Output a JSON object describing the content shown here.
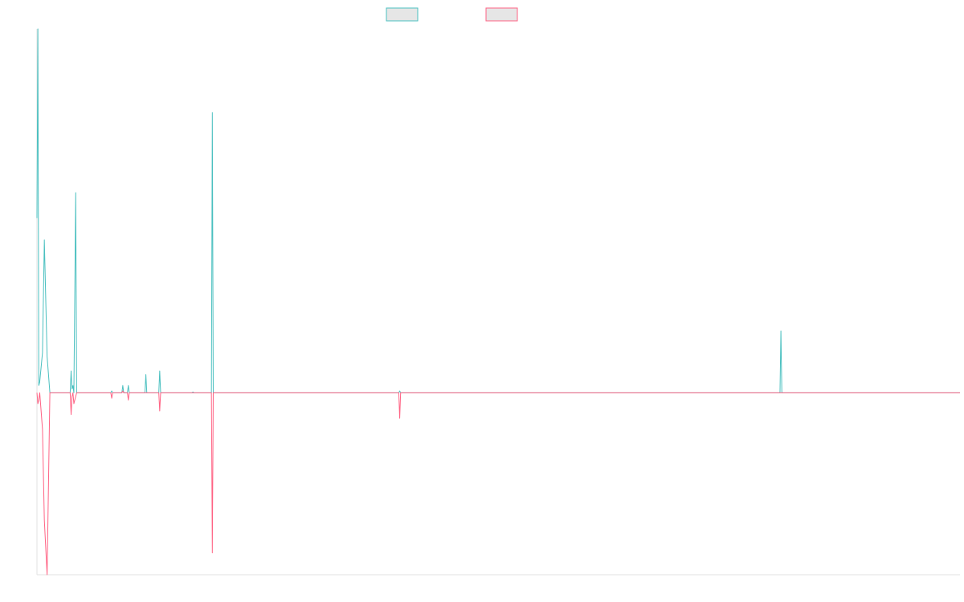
{
  "chart_data": {
    "type": "line",
    "title": "",
    "xlabel": "",
    "ylabel": "",
    "xlim": [
      0,
      1000
    ],
    "ylim": [
      -50,
      100
    ],
    "grid": false,
    "legend": {
      "placement": "top-center",
      "entries": [
        "",
        ""
      ]
    },
    "series": [
      {
        "color": "#4bc0c0",
        "fill": "#e6e6e6",
        "points": [
          [
            0,
            48
          ],
          [
            1,
            100
          ],
          [
            2,
            2
          ],
          [
            3,
            3
          ],
          [
            6,
            11
          ],
          [
            8,
            42
          ],
          [
            11,
            10
          ],
          [
            14,
            0
          ],
          [
            36,
            0
          ],
          [
            37,
            6
          ],
          [
            38,
            1
          ],
          [
            39,
            2
          ],
          [
            40,
            0
          ],
          [
            42,
            55
          ],
          [
            43,
            0
          ],
          [
            80,
            0
          ],
          [
            81,
            0.5
          ],
          [
            82,
            0
          ],
          [
            92,
            0
          ],
          [
            93,
            2
          ],
          [
            94,
            0
          ],
          [
            98,
            0
          ],
          [
            99,
            2
          ],
          [
            100,
            0
          ],
          [
            117,
            0
          ],
          [
            118,
            5
          ],
          [
            119,
            0
          ],
          [
            132,
            0
          ],
          [
            133,
            6
          ],
          [
            134,
            0
          ],
          [
            168,
            0
          ],
          [
            169,
            0.2
          ],
          [
            170,
            0
          ],
          [
            189,
            0
          ],
          [
            190,
            77
          ],
          [
            191,
            0
          ],
          [
            392,
            0
          ],
          [
            393,
            0.5
          ],
          [
            394,
            0
          ],
          [
            805,
            0
          ],
          [
            806,
            17
          ],
          [
            807,
            0
          ],
          [
            1000,
            0
          ]
        ]
      },
      {
        "color": "#ff6384",
        "fill": "#e6e6e6",
        "points": [
          [
            0,
            0
          ],
          [
            1,
            -3
          ],
          [
            2,
            -2
          ],
          [
            3,
            0
          ],
          [
            6,
            -10
          ],
          [
            8,
            -35
          ],
          [
            11,
            -50
          ],
          [
            14,
            0
          ],
          [
            36,
            0
          ],
          [
            37,
            -6
          ],
          [
            38,
            -1
          ],
          [
            39,
            0
          ],
          [
            40,
            -3
          ],
          [
            42,
            -1
          ],
          [
            43,
            0
          ],
          [
            80,
            0
          ],
          [
            81,
            -1.5
          ],
          [
            82,
            0
          ],
          [
            92,
            0
          ],
          [
            93,
            0.5
          ],
          [
            94,
            0
          ],
          [
            98,
            0
          ],
          [
            99,
            -2
          ],
          [
            100,
            0
          ],
          [
            117,
            0
          ],
          [
            118,
            0
          ],
          [
            119,
            0
          ],
          [
            132,
            0
          ],
          [
            133,
            -5
          ],
          [
            134,
            0
          ],
          [
            189,
            0
          ],
          [
            190,
            -44
          ],
          [
            191,
            0
          ],
          [
            392,
            0
          ],
          [
            393,
            -7
          ],
          [
            394,
            0
          ],
          [
            1000,
            0
          ]
        ]
      }
    ]
  }
}
